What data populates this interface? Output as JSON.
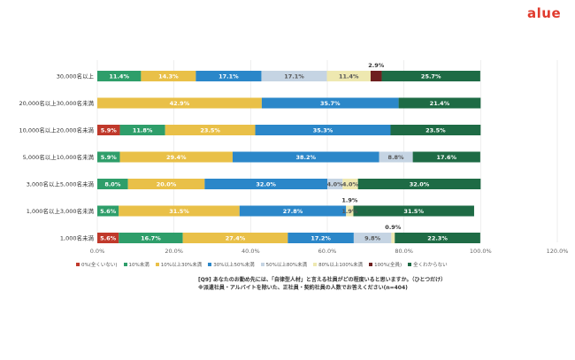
{
  "brand": {
    "logo_text": "alue"
  },
  "chart_data": {
    "type": "bar",
    "orientation": "horizontal",
    "stacked": true,
    "title": "",
    "xlabel": "",
    "ylabel": "",
    "xlim": [
      0,
      120
    ],
    "x_ticks": [
      0,
      20,
      40,
      60,
      80,
      100,
      120
    ],
    "x_tick_labels": [
      "0.0%",
      "20.0%",
      "40.0%",
      "60.0%",
      "80.0%",
      "100.0%",
      "120.0%"
    ],
    "grid": true,
    "legend_position": "bottom",
    "categories": [
      "30,000名以上",
      "20,000名以上30,000名未満",
      "10,000名以上20,000名未満",
      "5,000名以上10,000名未満",
      "3,000名以上5,000名未満",
      "1,000名以上3,000名未満",
      "1,000名未満"
    ],
    "series": [
      {
        "name": "0%(全くいない)",
        "color": "#c0392b",
        "values": [
          0,
          0,
          5.9,
          0,
          0,
          0,
          5.6
        ],
        "labels": [
          "",
          "",
          "5.9%",
          "",
          "",
          "",
          "5.6%"
        ]
      },
      {
        "name": "10%未満",
        "color": "#2e9e6a",
        "values": [
          11.4,
          0,
          11.8,
          5.9,
          8.0,
          5.6,
          16.7
        ],
        "labels": [
          "11.4%",
          "",
          "11.8%",
          "5.9%",
          "8.0%",
          "5.6%",
          "16.7%"
        ]
      },
      {
        "name": "10%以上30%未満",
        "color": "#e9c048",
        "values": [
          14.3,
          42.9,
          23.5,
          29.4,
          20.0,
          31.5,
          27.4
        ],
        "labels": [
          "14.3%",
          "42.9%",
          "23.5%",
          "29.4%",
          "20.0%",
          "31.5%",
          "27.4%"
        ]
      },
      {
        "name": "30%以上50%未満",
        "color": "#2b87c9",
        "values": [
          17.1,
          35.7,
          35.3,
          38.2,
          32.0,
          27.8,
          17.2
        ],
        "labels": [
          "17.1%",
          "35.7%",
          "35.3%",
          "38.2%",
          "32.0%",
          "27.8%",
          "17.2%"
        ]
      },
      {
        "name": "50%以上80%未満",
        "color": "#c5d4e3",
        "values": [
          17.1,
          0,
          0,
          8.8,
          4.0,
          0,
          9.8
        ],
        "labels": [
          "17.1%",
          "",
          "",
          "8.8%",
          "4.0%",
          "",
          "9.8%"
        ]
      },
      {
        "name": "80%以上100%未満",
        "color": "#eee8b0",
        "values": [
          11.4,
          0,
          0,
          0,
          4.0,
          1.9,
          0.9
        ],
        "labels": [
          "11.4%",
          "",
          "",
          "",
          "4.0%",
          "1.9%",
          ""
        ]
      },
      {
        "name": "100%(全員)",
        "color": "#6e1f1f",
        "values": [
          2.9,
          0,
          0,
          0,
          0,
          0,
          0
        ],
        "labels": [
          "",
          "",
          "",
          "",
          "",
          "",
          ""
        ]
      },
      {
        "name": "全くわからない",
        "color": "#1e6b45",
        "values": [
          25.7,
          21.4,
          23.5,
          17.6,
          32.0,
          31.5,
          22.3
        ],
        "labels": [
          "25.7%",
          "21.4%",
          "23.5%",
          "17.6%",
          "32.0%",
          "31.5%",
          "22.3%"
        ]
      }
    ],
    "callouts": [
      {
        "category_index": 0,
        "series_index": 6,
        "text": "2.9%"
      },
      {
        "category_index": 5,
        "series_index": 5,
        "text": "1.9%"
      },
      {
        "category_index": 6,
        "series_index": 5,
        "text": "0.9%"
      }
    ]
  },
  "question": {
    "line1": "[Q9] あなたのお勤め先には、「自律型人材」と言える社員がどの程度いると思いますか。（ひとつだけ）",
    "line2": "※派遣社員・アルバイトを除いた、正社員・契約社員の人数でお答えください(n=404)"
  }
}
